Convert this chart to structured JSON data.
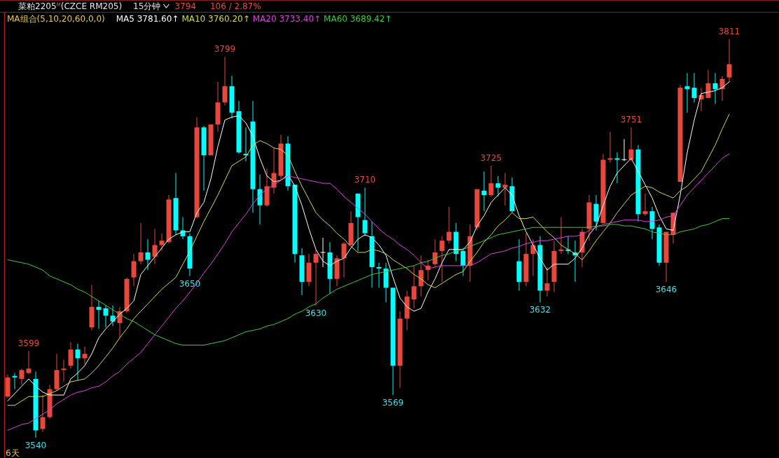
{
  "chart_data": {
    "type": "candlestick",
    "title": "菜粕2205$^{M}$(CZCE RM205)",
    "annotations": [
      "15分钟",
      "3794",
      "106 / 2.87%",
      "MA组合(5,10,20,60,0,0)",
      "6天"
    ],
    "legend": "top left",
    "categories": [
      null,
      null,
      null,
      null,
      null,
      null,
      null,
      null,
      null,
      null,
      null,
      null,
      null,
      null,
      null,
      null,
      null,
      null,
      null,
      null,
      null,
      null,
      null,
      null,
      null,
      null,
      null,
      null,
      null,
      null,
      null,
      null,
      null,
      null,
      null,
      null,
      null,
      null,
      null,
      null,
      null,
      null,
      null,
      null,
      null,
      null,
      null,
      null,
      null,
      null,
      null,
      null,
      null,
      null,
      null,
      null,
      null,
      null,
      null,
      null,
      null,
      null,
      null,
      null,
      null,
      null,
      null,
      null,
      null,
      null,
      null,
      null,
      null,
      null,
      null,
      null,
      null,
      null,
      null,
      null,
      null,
      null,
      null,
      null,
      null,
      null,
      null,
      null,
      null,
      null,
      null,
      null,
      null,
      null,
      null,
      null,
      null,
      null,
      null,
      null,
      null,
      null,
      null,
      null
    ],
    "ohlc": [
      [
        3568,
        3583,
        3567,
        3581
      ],
      [
        3582,
        3584,
        3573,
        3581
      ],
      [
        3580,
        3587,
        3576,
        3586
      ],
      [
        3584,
        3599,
        3583,
        3587
      ],
      [
        3580,
        3585,
        3540,
        3545
      ],
      [
        3546,
        3569,
        3544,
        3554
      ],
      [
        3554,
        3576,
        3553,
        3573
      ],
      [
        3573,
        3597,
        3572,
        3586
      ],
      [
        3586,
        3593,
        3578,
        3587
      ],
      [
        3589,
        3605,
        3587,
        3600
      ],
      [
        3600,
        3604,
        3579,
        3594
      ],
      [
        3594,
        3602,
        3590,
        3597
      ],
      [
        3615,
        3644,
        3613,
        3629
      ],
      [
        3629,
        3633,
        3614,
        3627
      ],
      [
        3628,
        3630,
        3615,
        3623
      ],
      [
        3623,
        3630,
        3616,
        3619
      ],
      [
        3618,
        3629,
        3608,
        3626
      ],
      [
        3626,
        3649,
        3625,
        3648
      ],
      [
        3649,
        3665,
        3643,
        3660
      ],
      [
        3660,
        3686,
        3658,
        3666
      ],
      [
        3666,
        3675,
        3654,
        3661
      ],
      [
        3663,
        3682,
        3658,
        3671
      ],
      [
        3671,
        3679,
        3667,
        3674
      ],
      [
        3673,
        3705,
        3672,
        3702
      ],
      [
        3703,
        3720,
        3678,
        3681
      ],
      [
        3681,
        3690,
        3675,
        3677
      ],
      [
        3677,
        3679,
        3650,
        3655
      ],
      [
        3690,
        3758,
        3689,
        3751
      ],
      [
        3751,
        3752,
        3708,
        3732
      ],
      [
        3732,
        3753,
        3732,
        3753
      ],
      [
        3753,
        3782,
        3748,
        3768
      ],
      [
        3768,
        3799,
        3766,
        3779
      ],
      [
        3779,
        3786,
        3757,
        3761
      ],
      [
        3762,
        3769,
        3733,
        3734
      ],
      [
        3733,
        3751,
        3728,
        3732
      ],
      [
        3755,
        3769,
        3693,
        3709
      ],
      [
        3709,
        3719,
        3685,
        3698
      ],
      [
        3698,
        3723,
        3697,
        3711
      ],
      [
        3710,
        3737,
        3706,
        3720
      ],
      [
        3718,
        3746,
        3715,
        3740
      ],
      [
        3740,
        3745,
        3708,
        3711
      ],
      [
        3712,
        3712,
        3659,
        3665
      ],
      [
        3664,
        3669,
        3637,
        3646
      ],
      [
        3646,
        3665,
        3643,
        3659
      ],
      [
        3659,
        3668,
        3630,
        3665
      ],
      [
        3666,
        3676,
        3656,
        3666
      ],
      [
        3666,
        3673,
        3638,
        3648
      ],
      [
        3648,
        3664,
        3643,
        3662
      ],
      [
        3662,
        3673,
        3649,
        3672
      ],
      [
        3671,
        3694,
        3671,
        3686
      ],
      [
        3706,
        3706,
        3667,
        3690
      ],
      [
        3688,
        3710,
        3677,
        3679
      ],
      [
        3677,
        3687,
        3642,
        3656
      ],
      [
        3656,
        3659,
        3642,
        3655
      ],
      [
        3655,
        3659,
        3632,
        3642
      ],
      [
        3642,
        3642,
        3569,
        3589
      ],
      [
        3589,
        3626,
        3574,
        3621
      ],
      [
        3621,
        3640,
        3613,
        3636
      ],
      [
        3634,
        3657,
        3628,
        3643
      ],
      [
        3643,
        3664,
        3636,
        3654
      ],
      [
        3654,
        3661,
        3647,
        3657
      ],
      [
        3658,
        3675,
        3656,
        3666
      ],
      [
        3667,
        3677,
        3646,
        3674
      ],
      [
        3674,
        3697,
        3672,
        3680
      ],
      [
        3680,
        3686,
        3660,
        3665
      ],
      [
        3667,
        3669,
        3650,
        3657
      ],
      [
        3657,
        3685,
        3646,
        3677
      ],
      [
        3683,
        3709,
        3681,
        3709
      ],
      [
        3708,
        3721,
        3694,
        3705
      ],
      [
        3705,
        3725,
        3704,
        3713
      ],
      [
        3713,
        3718,
        3704,
        3710
      ],
      [
        3710,
        3720,
        3698,
        3712
      ],
      [
        3711,
        3717,
        3693,
        3694
      ],
      [
        3660,
        3675,
        3640,
        3646
      ],
      [
        3646,
        3679,
        3643,
        3665
      ],
      [
        3665,
        3675,
        3650,
        3671
      ],
      [
        3671,
        3677,
        3632,
        3640
      ],
      [
        3640,
        3656,
        3636,
        3645
      ],
      [
        3646,
        3674,
        3639,
        3667
      ],
      [
        3667,
        3690,
        3665,
        3668
      ],
      [
        3668,
        3677,
        3665,
        3667
      ],
      [
        3666,
        3674,
        3646,
        3664
      ],
      [
        3666,
        3682,
        3656,
        3680
      ],
      [
        3682,
        3705,
        3674,
        3700
      ],
      [
        3699,
        3705,
        3681,
        3687
      ],
      [
        3686,
        3733,
        3686,
        3729
      ],
      [
        3729,
        3748,
        3727,
        3730
      ],
      [
        3730,
        3734,
        3713,
        3729
      ],
      [
        3729,
        3743,
        3728,
        3729
      ],
      [
        3729,
        3751,
        3728,
        3736
      ],
      [
        3736,
        3739,
        3687,
        3692
      ],
      [
        3692,
        3706,
        3691,
        3694
      ],
      [
        3694,
        3697,
        3675,
        3682
      ],
      [
        3683,
        3685,
        3657,
        3659
      ],
      [
        3659,
        3680,
        3646,
        3680
      ],
      [
        3678,
        3693,
        3672,
        3693
      ],
      [
        3714,
        3780,
        3714,
        3778
      ],
      [
        3779,
        3788,
        3761,
        3777
      ],
      [
        3778,
        3788,
        3768,
        3771
      ],
      [
        3770,
        3778,
        3762,
        3773
      ],
      [
        3771,
        3790,
        3771,
        3781
      ],
      [
        3781,
        3788,
        3767,
        3777
      ],
      [
        3777,
        3786,
        3769,
        3784
      ],
      [
        3785,
        3811,
        3782,
        3794
      ]
    ],
    "colors": [
      "#e8483c",
      "#00ffff",
      "#e8483c",
      "#e8483c",
      "#00ffff",
      "#e8483c",
      "#e8483c",
      "#e8483c",
      "#e8483c",
      "#e8483c",
      "#00ffff",
      "#e8483c",
      "#e8483c",
      "#00ffff",
      "#00ffff",
      "#00ffff",
      "#e8483c",
      "#e8483c",
      "#e8483c",
      "#e8483c",
      "#00ffff",
      "#e8483c",
      "#e8483c",
      "#e8483c",
      "#00ffff",
      "#00ffff",
      "#00ffff",
      "#e8483c",
      "#00ffff",
      "#e8483c",
      "#e8483c",
      "#e8483c",
      "#00ffff",
      "#00ffff",
      "#00ffff",
      "#00ffff",
      "#00ffff",
      "#e8483c",
      "#e8483c",
      "#e8483c",
      "#00ffff",
      "#00ffff",
      "#00ffff",
      "#e8483c",
      "#e8483c",
      "#ffffff",
      "#00ffff",
      "#e8483c",
      "#e8483c",
      "#e8483c",
      "#00ffff",
      "#00ffff",
      "#00ffff",
      "#00ffff",
      "#00ffff",
      "#00ffff",
      "#e8483c",
      "#e8483c",
      "#e8483c",
      "#e8483c",
      "#e8483c",
      "#e8483c",
      "#e8483c",
      "#e8483c",
      "#00ffff",
      "#00ffff",
      "#e8483c",
      "#e8483c",
      "#00ffff",
      "#e8483c",
      "#00ffff",
      "#e8483c",
      "#00ffff",
      "#00ffff",
      "#e8483c",
      "#e8483c",
      "#00ffff",
      "#e8483c",
      "#e8483c",
      "#e8483c",
      "#00ffff",
      "#00ffff",
      "#e8483c",
      "#e8483c",
      "#00ffff",
      "#e8483c",
      "#e8483c",
      "#00ffff",
      "#ffffff",
      "#e8483c",
      "#00ffff",
      "#e8483c",
      "#00ffff",
      "#00ffff",
      "#e8483c",
      "#e8483c",
      "#e8483c",
      "#00ffff",
      "#00ffff",
      "#e8483c",
      "#e8483c",
      "#00ffff",
      "#e8483c",
      "#e8483c"
    ],
    "value_labels": [
      null,
      null,
      null,
      "3599",
      "3540",
      null,
      null,
      null,
      null,
      null,
      null,
      null,
      null,
      null,
      null,
      null,
      null,
      null,
      null,
      null,
      null,
      null,
      null,
      null,
      null,
      null,
      "3650",
      null,
      null,
      null,
      null,
      "3799",
      null,
      null,
      null,
      null,
      null,
      null,
      null,
      null,
      null,
      null,
      null,
      null,
      "3630",
      null,
      null,
      null,
      null,
      null,
      null,
      "3710",
      null,
      null,
      null,
      "3569",
      null,
      null,
      null,
      null,
      null,
      null,
      null,
      null,
      null,
      null,
      null,
      null,
      null,
      "3725",
      null,
      null,
      null,
      null,
      null,
      null,
      "3632",
      null,
      null,
      null,
      null,
      null,
      null,
      null,
      null,
      null,
      null,
      null,
      null,
      "3751",
      null,
      null,
      null,
      null,
      "3646",
      null,
      null,
      null,
      null,
      null,
      null,
      null,
      null,
      "3811"
    ],
    "series": [
      {
        "type": "line",
        "name": "MA5 3781.60↑",
        "color": "#ffffff",
        "values": [
          3565,
          3570,
          3575,
          3580,
          3575,
          3571,
          3569,
          3569,
          3569,
          3580,
          3584,
          3589,
          3597,
          3608,
          3614,
          3619,
          3624,
          3628,
          3633,
          3651,
          3657,
          3663,
          3669,
          3675,
          3678,
          3680,
          3680,
          3693,
          3700,
          3716,
          3738,
          3756,
          3758,
          3759,
          3754,
          3745,
          3730,
          3718,
          3714,
          3715,
          3719,
          3711,
          3698,
          3682,
          3668,
          3660,
          3657,
          3660,
          3662,
          3669,
          3675,
          3678,
          3676,
          3671,
          3664,
          3649,
          3635,
          3629,
          3626,
          3628,
          3639,
          3648,
          3659,
          3668,
          3668,
          3668,
          3673,
          3684,
          3691,
          3700,
          3705,
          3710,
          3705,
          3691,
          3680,
          3671,
          3662,
          3654,
          3658,
          3658,
          3658,
          3662,
          3669,
          3678,
          3684,
          3698,
          3711,
          3720,
          3725,
          3730,
          3721,
          3712,
          3703,
          3691,
          3682,
          3681,
          3705,
          3734,
          3756,
          3774,
          3775,
          3776,
          3778,
          3782
        ]
      },
      {
        "type": "line",
        "name": "MA10 3760.20↑",
        "color": "#d8d84c",
        "values": [
          3562,
          3562,
          3565,
          3568,
          3568,
          3568,
          3570,
          3572,
          3575,
          3578,
          3579,
          3580,
          3584,
          3589,
          3595,
          3601,
          3608,
          3614,
          3621,
          3626,
          3631,
          3636,
          3641,
          3645,
          3649,
          3658,
          3667,
          3677,
          3687,
          3696,
          3705,
          3715,
          3725,
          3728,
          3731,
          3739,
          3742,
          3740,
          3737,
          3736,
          3732,
          3721,
          3711,
          3702,
          3693,
          3688,
          3684,
          3679,
          3675,
          3670,
          3666,
          3666,
          3668,
          3667,
          3665,
          3661,
          3658,
          3655,
          3651,
          3648,
          3644,
          3642,
          3645,
          3648,
          3651,
          3653,
          3660,
          3666,
          3673,
          3678,
          3684,
          3688,
          3693,
          3689,
          3689,
          3690,
          3685,
          3680,
          3676,
          3671,
          3668,
          3665,
          3661,
          3667,
          3674,
          3680,
          3686,
          3693,
          3699,
          3705,
          3708,
          3711,
          3710,
          3707,
          3705,
          3703,
          3708,
          3711,
          3716,
          3721,
          3730,
          3739,
          3750,
          3760
        ]
      },
      {
        "type": "line",
        "name": "MA20 3733.40↑",
        "color": "#e040e0",
        "values": [
          3545,
          3547,
          3549,
          3550,
          3553,
          3556,
          3559,
          3563,
          3566,
          3569,
          3571,
          3572,
          3574,
          3575,
          3578,
          3582,
          3585,
          3590,
          3594,
          3598,
          3604,
          3610,
          3616,
          3622,
          3628,
          3633,
          3639,
          3645,
          3652,
          3658,
          3665,
          3672,
          3680,
          3686,
          3692,
          3699,
          3705,
          3709,
          3712,
          3715,
          3718,
          3717,
          3716,
          3715,
          3714,
          3713,
          3713,
          3709,
          3704,
          3700,
          3696,
          3692,
          3687,
          3682,
          3678,
          3675,
          3671,
          3668,
          3664,
          3659,
          3655,
          3656,
          3657,
          3657,
          3657,
          3657,
          3657,
          3659,
          3662,
          3665,
          3666,
          3667,
          3669,
          3670,
          3672,
          3673,
          3674,
          3674,
          3675,
          3676,
          3677,
          3677,
          3678,
          3681,
          3683,
          3685,
          3686,
          3687,
          3688,
          3688,
          3688,
          3687,
          3687,
          3688,
          3690,
          3691,
          3698,
          3705,
          3710,
          3715,
          3720,
          3725,
          3730,
          3733
        ]
      },
      {
        "type": "line",
        "name": "MA60 3689.42↑",
        "color": "#3ccc3c",
        "values": [
          3661,
          3660,
          3659,
          3658,
          3656,
          3654,
          3650,
          3648,
          3646,
          3644,
          3641,
          3639,
          3636,
          3633,
          3630,
          3627,
          3624,
          3621,
          3619,
          3616,
          3613,
          3610,
          3608,
          3606,
          3604,
          3603,
          3603,
          3603,
          3603,
          3604,
          3605,
          3606,
          3608,
          3610,
          3612,
          3613,
          3614,
          3616,
          3617,
          3619,
          3621,
          3624,
          3626,
          3629,
          3631,
          3635,
          3638,
          3641,
          3643,
          3645,
          3647,
          3649,
          3651,
          3652,
          3653,
          3654,
          3655,
          3656,
          3657,
          3659,
          3660,
          3662,
          3664,
          3665,
          3667,
          3668,
          3670,
          3672,
          3674,
          3676,
          3678,
          3679,
          3680,
          3681,
          3682,
          3683,
          3683,
          3683,
          3683,
          3683,
          3683,
          3683,
          3683,
          3683,
          3684,
          3684,
          3685,
          3685,
          3684,
          3684,
          3683,
          3682,
          3680,
          3679,
          3678,
          3678,
          3680,
          3681,
          3682,
          3684,
          3685,
          3687,
          3689,
          3689
        ]
      }
    ]
  }
}
